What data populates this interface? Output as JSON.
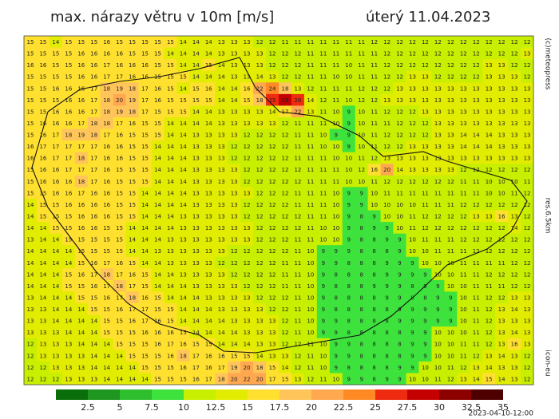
{
  "map": {
    "title": "max. nárazy větru v 10m [m/s]",
    "date": "úterý 11.04.2023",
    "copyright": "(c)meteopress",
    "resolution": "res.6.5km",
    "model": "icon-eu",
    "run": "2023-04-10-12:00",
    "legend": {
      "colors": [
        "#0a6e0a",
        "#1f961f",
        "#2ebe2e",
        "#3de23d",
        "#c8ee00",
        "#e2ec00",
        "#ffe02e",
        "#ffc45a",
        "#ffa850",
        "#ff8a24",
        "#ee2a10",
        "#c40000",
        "#8c0000",
        "#4e0000"
      ],
      "labels": [
        2.5,
        5,
        7.5,
        10,
        12.5,
        15,
        17.5,
        20,
        22.5,
        25,
        27.5,
        30,
        32.5,
        35
      ]
    },
    "grid": [
      [
        15,
        15,
        14,
        15,
        15,
        15,
        16,
        15,
        15,
        15,
        15,
        15,
        14,
        14,
        14,
        13,
        13,
        13,
        12,
        12,
        11,
        11,
        11,
        11,
        11,
        11,
        11,
        12,
        12,
        12,
        12,
        12,
        12,
        12,
        12,
        12,
        12,
        12,
        12,
        12
      ],
      [
        15,
        15,
        15,
        15,
        16,
        16,
        16,
        16,
        15,
        15,
        15,
        14,
        14,
        14,
        14,
        13,
        13,
        13,
        13,
        12,
        12,
        12,
        11,
        11,
        11,
        11,
        11,
        11,
        12,
        12,
        12,
        12,
        12,
        12,
        12,
        12,
        12,
        12,
        12,
        13
      ],
      [
        16,
        16,
        15,
        15,
        16,
        16,
        17,
        16,
        16,
        16,
        15,
        15,
        14,
        14,
        15,
        14,
        13,
        13,
        13,
        12,
        12,
        12,
        11,
        11,
        11,
        10,
        11,
        11,
        12,
        12,
        12,
        12,
        12,
        12,
        12,
        12,
        13,
        13,
        12,
        12
      ],
      [
        15,
        15,
        15,
        15,
        16,
        16,
        17,
        17,
        16,
        16,
        15,
        15,
        15,
        14,
        14,
        14,
        13,
        13,
        14,
        13,
        12,
        12,
        11,
        11,
        10,
        10,
        11,
        11,
        12,
        12,
        13,
        13,
        12,
        12,
        12,
        12,
        13,
        13,
        13,
        12
      ],
      [
        15,
        15,
        16,
        16,
        16,
        17,
        18,
        19,
        18,
        17,
        16,
        15,
        14,
        15,
        16,
        14,
        14,
        16,
        22,
        24,
        18,
        13,
        12,
        11,
        11,
        11,
        12,
        12,
        12,
        13,
        13,
        13,
        13,
        13,
        13,
        13,
        13,
        13,
        13,
        13
      ],
      [
        15,
        15,
        15,
        16,
        16,
        17,
        18,
        20,
        19,
        17,
        16,
        15,
        15,
        15,
        15,
        14,
        14,
        15,
        18,
        25,
        28,
        26,
        14,
        12,
        11,
        10,
        12,
        12,
        13,
        13,
        13,
        13,
        13,
        13,
        13,
        13,
        13,
        13,
        13,
        13
      ],
      [
        15,
        15,
        16,
        16,
        16,
        17,
        18,
        19,
        18,
        17,
        15,
        15,
        15,
        14,
        14,
        13,
        13,
        13,
        13,
        14,
        17,
        22,
        13,
        11,
        10,
        9,
        10,
        11,
        12,
        12,
        12,
        13,
        13,
        13,
        13,
        13,
        13,
        13,
        13,
        13
      ],
      [
        15,
        16,
        16,
        16,
        17,
        18,
        18,
        17,
        16,
        15,
        15,
        14,
        14,
        14,
        14,
        13,
        13,
        13,
        13,
        13,
        12,
        11,
        11,
        11,
        10,
        9,
        10,
        11,
        11,
        12,
        12,
        12,
        13,
        13,
        13,
        13,
        13,
        13,
        13,
        13
      ],
      [
        15,
        16,
        17,
        18,
        19,
        18,
        17,
        16,
        15,
        15,
        15,
        14,
        14,
        13,
        13,
        13,
        13,
        12,
        12,
        12,
        12,
        11,
        11,
        10,
        9,
        9,
        10,
        11,
        12,
        12,
        12,
        12,
        13,
        13,
        14,
        14,
        14,
        13,
        13,
        13
      ],
      [
        16,
        17,
        17,
        17,
        17,
        17,
        16,
        16,
        15,
        15,
        14,
        14,
        14,
        13,
        13,
        13,
        12,
        12,
        12,
        12,
        12,
        11,
        11,
        10,
        10,
        9,
        10,
        11,
        12,
        12,
        13,
        13,
        13,
        13,
        14,
        14,
        14,
        13,
        13,
        13
      ],
      [
        16,
        16,
        17,
        17,
        18,
        17,
        16,
        16,
        15,
        15,
        14,
        14,
        14,
        13,
        13,
        13,
        12,
        12,
        12,
        12,
        12,
        11,
        11,
        11,
        10,
        10,
        11,
        12,
        13,
        13,
        13,
        13,
        13,
        13,
        13,
        13,
        13,
        13,
        13,
        13
      ],
      [
        15,
        16,
        16,
        17,
        17,
        17,
        16,
        15,
        15,
        15,
        14,
        14,
        14,
        13,
        13,
        13,
        13,
        12,
        12,
        12,
        12,
        12,
        11,
        11,
        11,
        10,
        12,
        16,
        20,
        14,
        13,
        13,
        13,
        13,
        12,
        12,
        12,
        12,
        12,
        12
      ],
      [
        15,
        16,
        16,
        16,
        18,
        17,
        16,
        15,
        15,
        15,
        14,
        14,
        14,
        13,
        13,
        13,
        13,
        12,
        12,
        12,
        12,
        12,
        11,
        11,
        11,
        10,
        10,
        11,
        12,
        12,
        12,
        12,
        12,
        12,
        11,
        11,
        10,
        10,
        10,
        11
      ],
      [
        15,
        15,
        16,
        16,
        17,
        16,
        16,
        15,
        15,
        14,
        14,
        14,
        14,
        13,
        13,
        13,
        13,
        13,
        12,
        12,
        12,
        11,
        11,
        11,
        10,
        9,
        9,
        10,
        11,
        11,
        11,
        11,
        11,
        11,
        11,
        11,
        10,
        10,
        11,
        12
      ],
      [
        14,
        15,
        15,
        16,
        16,
        16,
        16,
        15,
        15,
        14,
        14,
        14,
        14,
        13,
        13,
        13,
        13,
        12,
        12,
        12,
        12,
        11,
        11,
        11,
        10,
        9,
        9,
        10,
        10,
        10,
        10,
        11,
        11,
        11,
        12,
        12,
        12,
        12,
        12,
        12
      ],
      [
        14,
        15,
        15,
        15,
        16,
        16,
        16,
        15,
        15,
        14,
        14,
        14,
        13,
        13,
        13,
        13,
        13,
        12,
        12,
        12,
        12,
        12,
        11,
        11,
        10,
        9,
        8,
        9,
        10,
        10,
        11,
        12,
        12,
        12,
        12,
        13,
        13,
        16,
        13,
        12
      ],
      [
        14,
        14,
        15,
        15,
        16,
        16,
        15,
        15,
        14,
        14,
        14,
        14,
        13,
        13,
        13,
        13,
        13,
        13,
        12,
        12,
        12,
        12,
        11,
        10,
        10,
        9,
        8,
        9,
        9,
        10,
        11,
        12,
        12,
        12,
        12,
        12,
        12,
        12,
        14,
        12
      ],
      [
        13,
        14,
        14,
        15,
        15,
        15,
        15,
        15,
        14,
        14,
        14,
        13,
        13,
        13,
        13,
        13,
        13,
        13,
        12,
        12,
        12,
        11,
        11,
        10,
        10,
        9,
        8,
        8,
        9,
        9,
        10,
        11,
        11,
        11,
        12,
        12,
        12,
        12,
        12,
        12
      ],
      [
        14,
        14,
        14,
        14,
        15,
        15,
        15,
        15,
        14,
        14,
        13,
        13,
        13,
        13,
        13,
        13,
        12,
        12,
        12,
        12,
        12,
        11,
        10,
        9,
        9,
        9,
        8,
        8,
        8,
        9,
        10,
        10,
        11,
        11,
        11,
        12,
        12,
        12,
        12,
        12
      ],
      [
        14,
        14,
        14,
        14,
        15,
        16,
        17,
        16,
        15,
        14,
        14,
        13,
        13,
        13,
        13,
        12,
        12,
        12,
        12,
        12,
        11,
        11,
        10,
        9,
        9,
        8,
        8,
        8,
        9,
        9,
        9,
        10,
        10,
        10,
        11,
        11,
        11,
        11,
        12,
        12
      ],
      [
        14,
        14,
        14,
        15,
        16,
        17,
        18,
        17,
        16,
        15,
        14,
        14,
        13,
        13,
        13,
        13,
        12,
        12,
        12,
        12,
        11,
        11,
        10,
        9,
        8,
        8,
        8,
        8,
        9,
        9,
        9,
        9,
        10,
        10,
        11,
        11,
        12,
        12,
        12,
        12
      ],
      [
        14,
        14,
        14,
        15,
        15,
        16,
        17,
        18,
        17,
        15,
        14,
        14,
        14,
        13,
        13,
        13,
        13,
        12,
        12,
        12,
        11,
        11,
        10,
        9,
        8,
        8,
        8,
        9,
        9,
        9,
        8,
        9,
        9,
        10,
        10,
        11,
        11,
        11,
        12,
        12
      ],
      [
        13,
        14,
        14,
        14,
        15,
        15,
        16,
        17,
        18,
        16,
        15,
        14,
        14,
        14,
        13,
        13,
        13,
        13,
        12,
        12,
        12,
        11,
        10,
        9,
        8,
        8,
        8,
        8,
        9,
        9,
        8,
        8,
        9,
        9,
        10,
        11,
        12,
        12,
        13,
        13
      ],
      [
        13,
        13,
        14,
        14,
        14,
        15,
        15,
        16,
        17,
        17,
        15,
        15,
        14,
        14,
        14,
        13,
        13,
        13,
        13,
        12,
        12,
        11,
        10,
        9,
        8,
        8,
        8,
        8,
        8,
        9,
        9,
        9,
        9,
        9,
        10,
        11,
        12,
        13,
        14,
        13
      ],
      [
        13,
        13,
        14,
        14,
        14,
        14,
        15,
        15,
        16,
        17,
        16,
        15,
        14,
        14,
        14,
        14,
        13,
        13,
        13,
        13,
        12,
        11,
        10,
        9,
        9,
        8,
        8,
        8,
        8,
        9,
        9,
        9,
        9,
        9,
        10,
        11,
        12,
        13,
        13,
        13
      ],
      [
        13,
        13,
        13,
        14,
        14,
        14,
        15,
        15,
        15,
        16,
        16,
        16,
        15,
        14,
        14,
        14,
        14,
        13,
        13,
        13,
        12,
        11,
        10,
        9,
        9,
        8,
        8,
        8,
        8,
        8,
        9,
        9,
        10,
        10,
        10,
        11,
        12,
        13,
        14,
        13
      ],
      [
        12,
        13,
        13,
        13,
        14,
        14,
        14,
        15,
        15,
        15,
        16,
        17,
        16,
        15,
        15,
        14,
        14,
        14,
        13,
        13,
        12,
        12,
        11,
        10,
        9,
        9,
        8,
        8,
        8,
        8,
        9,
        9,
        10,
        10,
        11,
        11,
        12,
        13,
        16,
        13
      ],
      [
        12,
        13,
        13,
        13,
        13,
        14,
        14,
        14,
        15,
        15,
        15,
        16,
        18,
        17,
        16,
        16,
        15,
        15,
        14,
        13,
        13,
        12,
        11,
        10,
        9,
        9,
        8,
        8,
        8,
        8,
        9,
        9,
        10,
        10,
        11,
        12,
        13,
        14,
        13,
        12
      ],
      [
        12,
        12,
        13,
        13,
        13,
        14,
        14,
        14,
        14,
        15,
        15,
        15,
        16,
        17,
        16,
        17,
        19,
        20,
        18,
        15,
        14,
        12,
        11,
        10,
        9,
        8,
        8,
        8,
        8,
        9,
        9,
        10,
        10,
        11,
        12,
        13,
        14,
        13,
        13,
        12
      ],
      [
        12,
        12,
        12,
        13,
        13,
        13,
        14,
        14,
        14,
        14,
        15,
        15,
        15,
        16,
        17,
        18,
        20,
        22,
        20,
        17,
        15,
        13,
        12,
        11,
        10,
        9,
        9,
        8,
        9,
        9,
        10,
        10,
        11,
        12,
        13,
        14,
        15,
        14,
        13,
        12
      ]
    ]
  }
}
